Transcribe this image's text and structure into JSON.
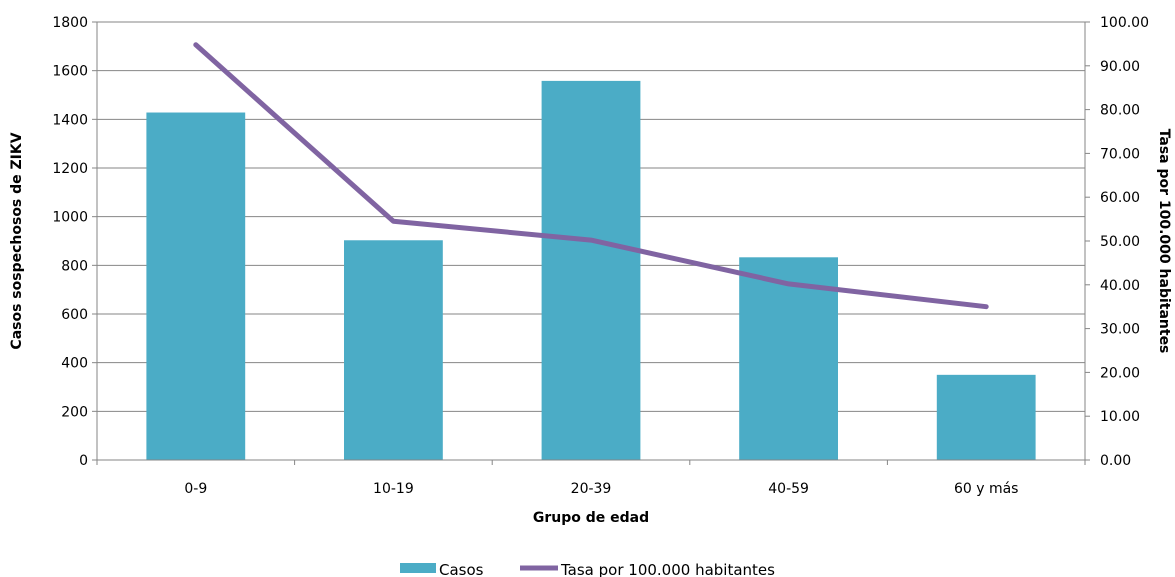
{
  "chart_data": {
    "type": "bar",
    "categories": [
      "0-9",
      "10-19",
      "20-39",
      "40-59",
      "60 y más"
    ],
    "series": [
      {
        "name": "Casos",
        "type": "bar",
        "axis": "left",
        "color": "#4bacc6",
        "values": [
          1428,
          903,
          1558,
          833,
          350
        ]
      },
      {
        "name": "Tasa por 100.000 habitantes",
        "type": "line",
        "axis": "right",
        "color": "#8064a2",
        "values": [
          94.8,
          54.5,
          50.2,
          40.2,
          35.0
        ]
      }
    ],
    "xlabel": "Grupo de edad",
    "ylabel": "Casos sospechosos de ZIKV",
    "y2label": "Tasa por 100.000 habitantes",
    "ylim": [
      0,
      1800
    ],
    "y2lim": [
      0,
      100
    ],
    "yticks": [
      "0",
      "200",
      "400",
      "600",
      "800",
      "1000",
      "1200",
      "1400",
      "1600",
      "1800"
    ],
    "y2ticks": [
      "0.00",
      "10.00",
      "20.00",
      "30.00",
      "40.00",
      "50.00",
      "60.00",
      "70.00",
      "80.00",
      "90.00",
      "100.00"
    ],
    "grid": true,
    "legend_position": "bottom"
  }
}
